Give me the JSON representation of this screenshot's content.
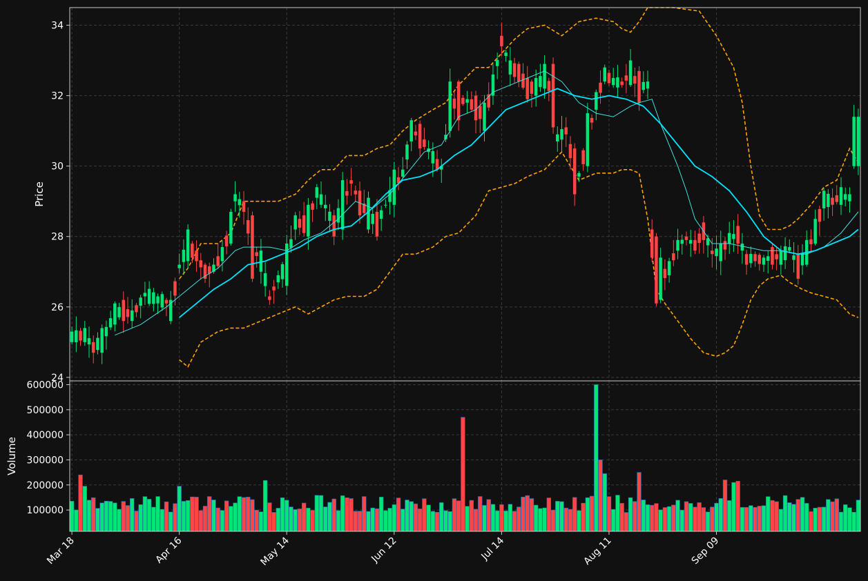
{
  "chart_data": [
    {
      "type": "candlestick",
      "ylabel": "Price",
      "ylim": [
        23.9,
        34.5
      ],
      "y_ticks": [
        24,
        26,
        28,
        30,
        32,
        34
      ],
      "grid": true,
      "colors": {
        "up": "#00e676",
        "down": "#ff4444",
        "ma_fast": "#40e0e0",
        "ma_slow": "#00e5ff",
        "bands": "#ffa500"
      },
      "anchors": [
        {
          "i": 0,
          "o": 25.0,
          "c": 25.3
        },
        {
          "i": 3,
          "o": 25.0,
          "c": 25.4
        },
        {
          "i": 5,
          "o": 25.0,
          "c": 24.7
        },
        {
          "i": 7,
          "o": 24.7,
          "c": 25.4
        },
        {
          "i": 10,
          "o": 25.5,
          "c": 26.1
        },
        {
          "i": 12,
          "o": 26.2,
          "c": 25.6
        },
        {
          "i": 14,
          "o": 25.6,
          "c": 25.9
        },
        {
          "i": 17,
          "o": 26.3,
          "c": 26.4
        },
        {
          "i": 20,
          "o": 26.1,
          "c": 26.3
        },
        {
          "i": 22,
          "o": 26.2,
          "c": 26.1
        },
        {
          "i": 23,
          "o": 25.6,
          "c": 26.2
        },
        {
          "i": 25,
          "o": 27.1,
          "c": 27.2
        },
        {
          "i": 27,
          "o": 27.3,
          "c": 28.2
        },
        {
          "i": 29,
          "o": 27.6,
          "c": 27.3
        },
        {
          "i": 31,
          "o": 27.2,
          "c": 26.8
        },
        {
          "i": 33,
          "o": 27.0,
          "c": 27.2
        },
        {
          "i": 35,
          "o": 27.3,
          "c": 27.7
        },
        {
          "i": 37,
          "o": 27.8,
          "c": 28.7
        },
        {
          "i": 38,
          "o": 29.0,
          "c": 29.2
        },
        {
          "i": 40,
          "o": 29.0,
          "c": 28.7
        },
        {
          "i": 42,
          "o": 28.6,
          "c": 26.8
        },
        {
          "i": 44,
          "o": 27.0,
          "c": 27.6
        },
        {
          "i": 46,
          "o": 26.3,
          "c": 26.2
        },
        {
          "i": 48,
          "o": 26.7,
          "c": 26.9
        },
        {
          "i": 50,
          "o": 26.6,
          "c": 27.8
        },
        {
          "i": 52,
          "o": 28.2,
          "c": 28.6
        },
        {
          "i": 54,
          "o": 28.6,
          "c": 28.1
        },
        {
          "i": 55,
          "o": 28.0,
          "c": 28.9
        },
        {
          "i": 57,
          "o": 29.1,
          "c": 29.4
        },
        {
          "i": 59,
          "o": 28.8,
          "c": 28.9
        },
        {
          "i": 61,
          "o": 28.6,
          "c": 28.0
        },
        {
          "i": 63,
          "o": 28.2,
          "c": 29.6
        },
        {
          "i": 65,
          "o": 29.6,
          "c": 29.5
        },
        {
          "i": 67,
          "o": 29.3,
          "c": 28.6
        },
        {
          "i": 69,
          "o": 28.2,
          "c": 29.1
        },
        {
          "i": 71,
          "o": 28.7,
          "c": 28.0
        },
        {
          "i": 73,
          "o": 28.9,
          "c": 28.9
        },
        {
          "i": 75,
          "o": 28.9,
          "c": 29.9
        },
        {
          "i": 77,
          "o": 29.7,
          "c": 29.9
        },
        {
          "i": 79,
          "o": 30.7,
          "c": 31.3
        },
        {
          "i": 81,
          "o": 31.2,
          "c": 30.5
        },
        {
          "i": 83,
          "o": 30.4,
          "c": 30.5
        },
        {
          "i": 85,
          "o": 30.2,
          "c": 29.9
        },
        {
          "i": 86,
          "o": 29.9,
          "c": 30.0
        },
        {
          "i": 88,
          "o": 31.0,
          "c": 32.4
        },
        {
          "i": 90,
          "o": 32.4,
          "c": 31.3
        },
        {
          "i": 92,
          "o": 31.8,
          "c": 31.9
        },
        {
          "i": 94,
          "o": 32.0,
          "c": 31.3
        },
        {
          "i": 96,
          "o": 31.0,
          "c": 31.8
        },
        {
          "i": 98,
          "o": 32.0,
          "c": 32.6
        },
        {
          "i": 100,
          "o": 33.7,
          "c": 33.4
        },
        {
          "i": 102,
          "o": 32.6,
          "c": 33.0
        },
        {
          "i": 104,
          "o": 32.9,
          "c": 32.4
        },
        {
          "i": 106,
          "o": 32.5,
          "c": 31.9
        },
        {
          "i": 108,
          "o": 32.0,
          "c": 32.5
        },
        {
          "i": 110,
          "o": 32.2,
          "c": 32.9
        },
        {
          "i": 112,
          "o": 32.9,
          "c": 31.1
        },
        {
          "i": 113,
          "o": 30.7,
          "c": 30.9
        },
        {
          "i": 115,
          "o": 31.1,
          "c": 30.9
        },
        {
          "i": 117,
          "o": 30.5,
          "c": 29.2
        },
        {
          "i": 118,
          "o": 29.7,
          "c": 29.8
        },
        {
          "i": 120,
          "o": 30.0,
          "c": 31.5
        },
        {
          "i": 122,
          "o": 31.6,
          "c": 32.1
        },
        {
          "i": 124,
          "o": 32.4,
          "c": 32.8
        },
        {
          "i": 126,
          "o": 32.3,
          "c": 32.5
        },
        {
          "i": 128,
          "o": 32.4,
          "c": 32.3
        },
        {
          "i": 130,
          "o": 32.3,
          "c": 33.0
        },
        {
          "i": 132,
          "o": 32.7,
          "c": 31.8
        },
        {
          "i": 134,
          "o": 32.2,
          "c": 32.4
        },
        {
          "i": 135,
          "o": 28.2,
          "c": 27.4
        },
        {
          "i": 136,
          "o": 28.0,
          "c": 26.1
        },
        {
          "i": 137,
          "o": 26.2,
          "c": 27.4
        },
        {
          "i": 139,
          "o": 26.9,
          "c": 27.3
        },
        {
          "i": 141,
          "o": 27.6,
          "c": 27.9
        },
        {
          "i": 143,
          "o": 28.0,
          "c": 27.9
        },
        {
          "i": 145,
          "o": 27.9,
          "c": 27.6
        },
        {
          "i": 147,
          "o": 28.4,
          "c": 27.9
        },
        {
          "i": 149,
          "o": 27.6,
          "c": 27.5
        },
        {
          "i": 151,
          "o": 27.3,
          "c": 27.8
        },
        {
          "i": 153,
          "o": 27.8,
          "c": 28.1
        },
        {
          "i": 155,
          "o": 28.3,
          "c": 27.8
        },
        {
          "i": 157,
          "o": 27.5,
          "c": 27.2
        },
        {
          "i": 159,
          "o": 27.5,
          "c": 27.3
        },
        {
          "i": 161,
          "o": 27.2,
          "c": 27.4
        },
        {
          "i": 163,
          "o": 27.7,
          "c": 27.2
        },
        {
          "i": 165,
          "o": 27.2,
          "c": 27.6
        },
        {
          "i": 167,
          "o": 27.6,
          "c": 27.7
        },
        {
          "i": 169,
          "o": 27.5,
          "c": 26.8
        },
        {
          "i": 171,
          "o": 27.2,
          "c": 27.9
        },
        {
          "i": 173,
          "o": 27.8,
          "c": 28.5
        },
        {
          "i": 175,
          "o": 28.8,
          "c": 29.3
        },
        {
          "i": 177,
          "o": 29.1,
          "c": 28.9
        },
        {
          "i": 179,
          "o": 28.9,
          "c": 29.4
        },
        {
          "i": 181,
          "o": 29.0,
          "c": 29.2
        },
        {
          "i": 182,
          "o": 30.0,
          "c": 31.4
        }
      ],
      "ma_fast": [
        [
          10,
          25.2
        ],
        [
          16,
          25.5
        ],
        [
          22,
          26.0
        ],
        [
          26,
          26.4
        ],
        [
          30,
          26.8
        ],
        [
          34,
          27.1
        ],
        [
          38,
          27.6
        ],
        [
          40,
          27.7
        ],
        [
          46,
          27.7
        ],
        [
          50,
          27.6
        ],
        [
          54,
          27.9
        ],
        [
          58,
          28.1
        ],
        [
          62,
          28.5
        ],
        [
          66,
          29.0
        ],
        [
          70,
          28.8
        ],
        [
          74,
          29.2
        ],
        [
          78,
          29.8
        ],
        [
          82,
          30.4
        ],
        [
          86,
          30.6
        ],
        [
          90,
          31.4
        ],
        [
          94,
          31.6
        ],
        [
          98,
          32.1
        ],
        [
          102,
          32.3
        ],
        [
          106,
          32.5
        ],
        [
          110,
          32.7
        ],
        [
          114,
          32.4
        ],
        [
          118,
          31.8
        ],
        [
          122,
          31.5
        ],
        [
          126,
          31.4
        ],
        [
          130,
          31.7
        ],
        [
          132,
          31.8
        ],
        [
          135,
          31.9
        ],
        [
          137,
          31.2
        ],
        [
          141,
          30.0
        ],
        [
          143,
          29.3
        ],
        [
          145,
          28.5
        ],
        [
          149,
          27.8
        ],
        [
          153,
          27.8
        ],
        [
          157,
          27.7
        ],
        [
          161,
          27.6
        ],
        [
          165,
          27.6
        ],
        [
          169,
          27.5
        ],
        [
          171,
          27.5
        ],
        [
          175,
          27.7
        ],
        [
          179,
          28.1
        ],
        [
          183,
          28.7
        ]
      ],
      "ma_slow": [
        [
          25,
          25.7
        ],
        [
          29,
          26.1
        ],
        [
          33,
          26.5
        ],
        [
          37,
          26.8
        ],
        [
          41,
          27.2
        ],
        [
          45,
          27.3
        ],
        [
          49,
          27.5
        ],
        [
          53,
          27.7
        ],
        [
          57,
          28.0
        ],
        [
          61,
          28.2
        ],
        [
          65,
          28.3
        ],
        [
          69,
          28.7
        ],
        [
          73,
          29.2
        ],
        [
          77,
          29.6
        ],
        [
          81,
          29.7
        ],
        [
          85,
          29.9
        ],
        [
          89,
          30.3
        ],
        [
          93,
          30.6
        ],
        [
          97,
          31.1
        ],
        [
          101,
          31.6
        ],
        [
          105,
          31.8
        ],
        [
          109,
          32.0
        ],
        [
          113,
          32.2
        ],
        [
          117,
          32.0
        ],
        [
          121,
          31.9
        ],
        [
          125,
          32.0
        ],
        [
          129,
          31.9
        ],
        [
          133,
          31.7
        ],
        [
          137,
          31.2
        ],
        [
          141,
          30.6
        ],
        [
          145,
          30.0
        ],
        [
          149,
          29.7
        ],
        [
          153,
          29.3
        ],
        [
          157,
          28.7
        ],
        [
          161,
          28.0
        ],
        [
          165,
          27.6
        ],
        [
          169,
          27.5
        ],
        [
          173,
          27.6
        ],
        [
          177,
          27.8
        ],
        [
          181,
          28.0
        ],
        [
          183,
          28.2
        ]
      ],
      "upper_band": [
        [
          25,
          26.8
        ],
        [
          27,
          27.1
        ],
        [
          30,
          27.8
        ],
        [
          34,
          27.8
        ],
        [
          37,
          28.1
        ],
        [
          40,
          29.0
        ],
        [
          44,
          29.0
        ],
        [
          48,
          29.0
        ],
        [
          52,
          29.2
        ],
        [
          55,
          29.6
        ],
        [
          58,
          29.9
        ],
        [
          61,
          29.9
        ],
        [
          64,
          30.3
        ],
        [
          68,
          30.3
        ],
        [
          71,
          30.5
        ],
        [
          74,
          30.6
        ],
        [
          77,
          31.0
        ],
        [
          80,
          31.3
        ],
        [
          84,
          31.6
        ],
        [
          87,
          31.8
        ],
        [
          90,
          32.3
        ],
        [
          94,
          32.8
        ],
        [
          97,
          32.8
        ],
        [
          100,
          33.2
        ],
        [
          103,
          33.6
        ],
        [
          106,
          33.9
        ],
        [
          110,
          34.0
        ],
        [
          114,
          33.7
        ],
        [
          118,
          34.1
        ],
        [
          122,
          34.2
        ],
        [
          126,
          34.1
        ],
        [
          128,
          33.9
        ],
        [
          130,
          33.8
        ],
        [
          132,
          34.1
        ],
        [
          134,
          34.6
        ],
        [
          140,
          34.6
        ],
        [
          146,
          34.4
        ],
        [
          150,
          33.7
        ],
        [
          154,
          32.8
        ],
        [
          156,
          31.8
        ],
        [
          158,
          30.0
        ],
        [
          160,
          28.6
        ],
        [
          162,
          28.2
        ],
        [
          165,
          28.2
        ],
        [
          167,
          28.3
        ],
        [
          169,
          28.5
        ],
        [
          172,
          28.9
        ],
        [
          175,
          29.4
        ],
        [
          178,
          29.6
        ],
        [
          181,
          30.5
        ],
        [
          183,
          30.1
        ]
      ],
      "lower_band": [
        [
          25,
          24.5
        ],
        [
          27,
          24.3
        ],
        [
          30,
          25.0
        ],
        [
          34,
          25.3
        ],
        [
          37,
          25.4
        ],
        [
          40,
          25.4
        ],
        [
          44,
          25.6
        ],
        [
          48,
          25.8
        ],
        [
          52,
          26.0
        ],
        [
          55,
          25.8
        ],
        [
          58,
          26.0
        ],
        [
          61,
          26.2
        ],
        [
          64,
          26.3
        ],
        [
          68,
          26.3
        ],
        [
          71,
          26.5
        ],
        [
          74,
          27.0
        ],
        [
          77,
          27.5
        ],
        [
          80,
          27.5
        ],
        [
          84,
          27.7
        ],
        [
          87,
          28.0
        ],
        [
          90,
          28.1
        ],
        [
          94,
          28.6
        ],
        [
          97,
          29.3
        ],
        [
          100,
          29.4
        ],
        [
          103,
          29.5
        ],
        [
          106,
          29.7
        ],
        [
          110,
          29.9
        ],
        [
          114,
          30.4
        ],
        [
          118,
          29.6
        ],
        [
          122,
          29.8
        ],
        [
          126,
          29.8
        ],
        [
          128,
          29.9
        ],
        [
          130,
          29.9
        ],
        [
          132,
          29.8
        ],
        [
          134,
          28.5
        ],
        [
          136,
          26.5
        ],
        [
          138,
          26.1
        ],
        [
          141,
          25.6
        ],
        [
          144,
          25.1
        ],
        [
          147,
          24.7
        ],
        [
          150,
          24.6
        ],
        [
          152,
          24.7
        ],
        [
          154,
          24.9
        ],
        [
          156,
          25.5
        ],
        [
          158,
          26.2
        ],
        [
          160,
          26.6
        ],
        [
          162,
          26.8
        ],
        [
          165,
          26.9
        ],
        [
          167,
          26.7
        ],
        [
          170,
          26.5
        ],
        [
          172,
          26.4
        ],
        [
          175,
          26.3
        ],
        [
          178,
          26.2
        ],
        [
          181,
          25.8
        ],
        [
          183,
          25.7
        ]
      ]
    },
    {
      "type": "bar",
      "ylabel": "Volume",
      "ylim": [
        15000,
        615000
      ],
      "y_ticks": [
        100000,
        200000,
        300000,
        400000,
        500000,
        600000
      ],
      "x_ticks": [
        {
          "i": 0,
          "label": "Mar 18"
        },
        {
          "i": 25,
          "label": "Apr 16"
        },
        {
          "i": 50,
          "label": "May 14"
        },
        {
          "i": 75,
          "label": "Jun 12"
        },
        {
          "i": 100,
          "label": "Jul 14"
        },
        {
          "i": 125,
          "label": "Aug 11"
        },
        {
          "i": 150,
          "label": "Sep 09"
        }
      ],
      "spikes": [
        {
          "i": 2,
          "v": 240000
        },
        {
          "i": 3,
          "v": 195000
        },
        {
          "i": 25,
          "v": 195000
        },
        {
          "i": 45,
          "v": 218000
        },
        {
          "i": 91,
          "v": 470000
        },
        {
          "i": 122,
          "v": 600000
        },
        {
          "i": 123,
          "v": 300000
        },
        {
          "i": 124,
          "v": 245000
        },
        {
          "i": 132,
          "v": 250000
        },
        {
          "i": 152,
          "v": 220000
        },
        {
          "i": 154,
          "v": 210000
        },
        {
          "i": 155,
          "v": 215000
        }
      ],
      "base_volume": [
        90000,
        160000
      ]
    }
  ]
}
